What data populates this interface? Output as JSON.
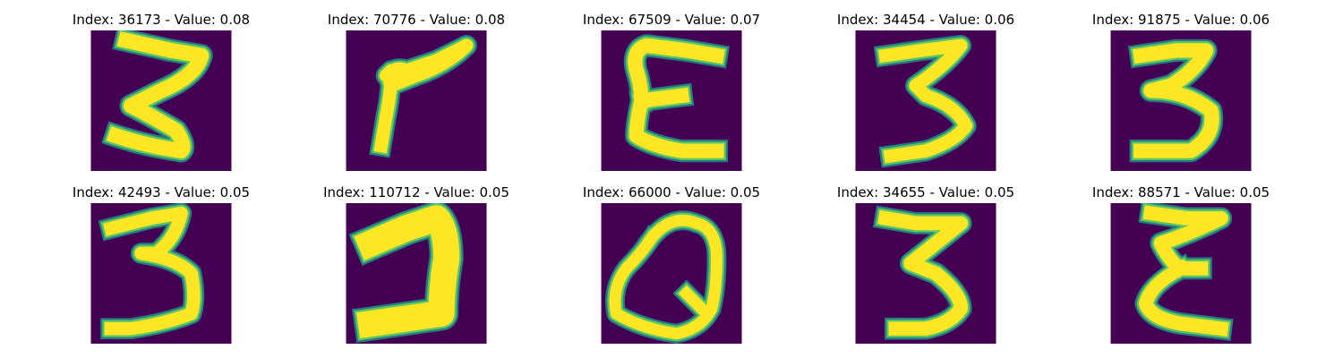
{
  "colors": {
    "background": "#440154",
    "stroke_core": "#fde725",
    "stroke_mid": "#5ec962",
    "stroke_edge": "#21918c"
  },
  "panels": [
    {
      "title": "Index: 36173 - Value: 0.08",
      "glyph": "3"
    },
    {
      "title": "Index: 70776 - Value: 0.08",
      "glyph": "7"
    },
    {
      "title": "Index: 67509 - Value: 0.07",
      "glyph": "E"
    },
    {
      "title": "Index: 34454 - Value: 0.06",
      "glyph": "3"
    },
    {
      "title": "Index: 91875 - Value: 0.06",
      "glyph": "3"
    },
    {
      "title": "Index: 42493 - Value: 0.05",
      "glyph": "3"
    },
    {
      "title": "Index: 110712 - Value: 0.05",
      "glyph": "Z"
    },
    {
      "title": "Index: 66000 - Value: 0.05",
      "glyph": "Q"
    },
    {
      "title": "Index: 34655 - Value: 0.05",
      "glyph": "3"
    },
    {
      "title": "Index: 88571 - Value: 0.05",
      "glyph": "E"
    }
  ]
}
